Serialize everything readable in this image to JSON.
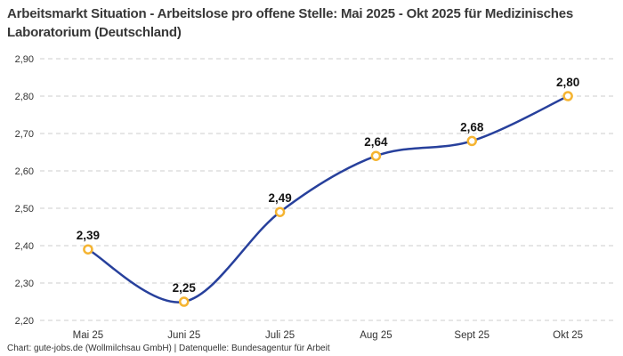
{
  "footer": {
    "credit": "Chart: gute-jobs.de (Wollmilchsau GmbH) | Datenquelle: Bundesagentur für Arbeit"
  },
  "colors": {
    "line": "#27409c",
    "marker_stroke": "#f5b431",
    "marker_fill": "#ffffff",
    "gridline": "#cccccc",
    "tick_text": "#333333",
    "point_label_text": "#141414",
    "title_text": "#383838",
    "background": "#ffffff"
  },
  "chart_data": {
    "type": "line",
    "title": "Arbeitsmarkt Situation - Arbeitslose pro offene Stelle: Mai 2025 - Okt 2025 für Medizinisches Laboratorium (Deutschland)",
    "xlabel": "",
    "ylabel": "",
    "categories": [
      "Mai 25",
      "Juni 25",
      "Juli 25",
      "Aug 25",
      "Sept 25",
      "Okt 25"
    ],
    "values": [
      2.39,
      2.25,
      2.49,
      2.64,
      2.68,
      2.8
    ],
    "point_labels": [
      "2,39",
      "2,25",
      "2,49",
      "2,64",
      "2,68",
      "2,80"
    ],
    "ylim": [
      2.2,
      2.9
    ],
    "yticks": [
      2.2,
      2.3,
      2.4,
      2.5,
      2.6,
      2.7,
      2.8,
      2.9
    ],
    "ytick_labels": [
      "2,20",
      "2,30",
      "2,40",
      "2,50",
      "2,60",
      "2,70",
      "2,80",
      "2,90"
    ],
    "grid": "horizontal-dashed",
    "legend": "none",
    "line_style": "smooth",
    "marker": "open-circle"
  }
}
